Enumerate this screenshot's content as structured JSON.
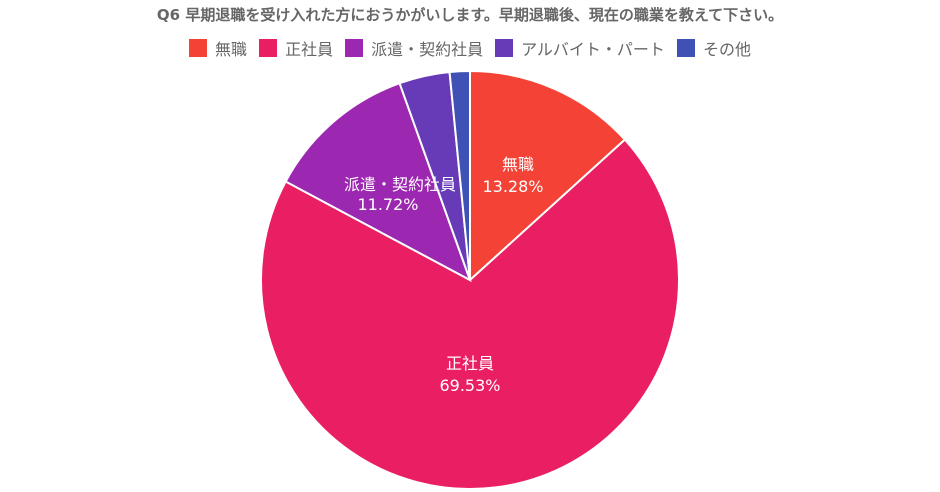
{
  "chart_data": {
    "type": "pie",
    "title": "Q6 早期退職を受け入れた方におうかがいします。早期退職後、現在の職業を教えて下さい。",
    "categories": [
      "無職",
      "正社員",
      "派遣・契約社員",
      "アルバイト・パート",
      "その他"
    ],
    "values": [
      13.28,
      69.53,
      11.72,
      3.91,
      1.56
    ],
    "colors": [
      "#F44336",
      "#E91E63",
      "#9C27B0",
      "#673AB7",
      "#3F51B5"
    ],
    "data_labels": [
      {
        "name": "無職",
        "value": "13.28%"
      },
      {
        "name": "正社員",
        "value": "69.53%"
      },
      {
        "name": "派遣・契約社員",
        "value": "11.72%"
      }
    ],
    "legend_position": "top",
    "start_angle": "top, clockwise",
    "unit": "%"
  },
  "title": "Q6 早期退職を受け入れた方におうかがいします。早期退職後、現在の職業を教えて下さい。",
  "legend": [
    {
      "label": "無職",
      "color": "#F44336"
    },
    {
      "label": "正社員",
      "color": "#E91E63"
    },
    {
      "label": "派遣・契約社員",
      "color": "#9C27B0"
    },
    {
      "label": "アルバイト・パート",
      "color": "#673AB7"
    },
    {
      "label": "その他",
      "color": "#3F51B5"
    }
  ],
  "labels": {
    "s0_name": "無職",
    "s0_value": "13.28%",
    "s1_name": "正社員",
    "s1_value": "69.53%",
    "s2_name": "派遣・契約社員",
    "s2_value": "11.72%"
  }
}
